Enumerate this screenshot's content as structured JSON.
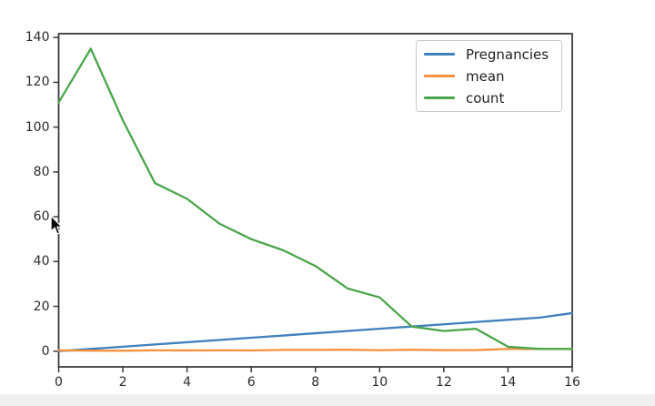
{
  "window": {
    "background": "#ffffff",
    "bottom_bar_color": "#efeff0"
  },
  "chart_data": {
    "type": "line",
    "title": "",
    "xlabel": "",
    "ylabel": "",
    "grid": false,
    "legend_position": "upper right",
    "xlim": [
      0,
      16
    ],
    "ylim": [
      -7,
      141.7
    ],
    "x": [
      0,
      1,
      2,
      3,
      4,
      5,
      6,
      7,
      8,
      9,
      10,
      11,
      12,
      13,
      14,
      15,
      16
    ],
    "x_ticks": [
      {
        "v": 0,
        "label": "0"
      },
      {
        "v": 2,
        "label": "2"
      },
      {
        "v": 4,
        "label": "4"
      },
      {
        "v": 6,
        "label": "6"
      },
      {
        "v": 8,
        "label": "8"
      },
      {
        "v": 10,
        "label": "10"
      },
      {
        "v": 12,
        "label": "12"
      },
      {
        "v": 14,
        "label": "14"
      },
      {
        "v": 16,
        "label": "16"
      }
    ],
    "y_ticks": [
      {
        "v": 0,
        "label": "0"
      },
      {
        "v": 20,
        "label": "20"
      },
      {
        "v": 40,
        "label": "40"
      },
      {
        "v": 60,
        "label": "60"
      },
      {
        "v": 80,
        "label": "80"
      },
      {
        "v": 100,
        "label": "100"
      },
      {
        "v": 120,
        "label": "120"
      },
      {
        "v": 140,
        "label": "140"
      }
    ],
    "series": [
      {
        "name": "Pregnancies",
        "color": "#4080bd",
        "values": [
          0,
          1,
          2,
          3,
          4,
          5,
          6,
          7,
          8,
          9,
          10,
          11,
          12,
          13,
          14,
          15,
          17
        ]
      },
      {
        "name": "mean",
        "color": "#f6913e",
        "values": [
          0.34,
          0.22,
          0.18,
          0.36,
          0.34,
          0.37,
          0.32,
          0.56,
          0.58,
          0.64,
          0.42,
          0.64,
          0.44,
          0.5,
          1.0,
          1.0,
          1.0
        ]
      },
      {
        "name": "count",
        "color": "#4aa54a",
        "values": [
          111,
          135,
          103,
          75,
          68,
          57,
          50,
          45,
          38,
          28,
          24,
          11,
          9,
          10,
          2,
          1,
          1
        ]
      }
    ]
  },
  "legend": {
    "items": [
      {
        "label": "Pregnancies",
        "color": "#4080bd"
      },
      {
        "label": "mean",
        "color": "#f6913e"
      },
      {
        "label": "count",
        "color": "#4aa54a"
      }
    ]
  },
  "axes": {
    "spine_color": "#3a3a3a",
    "tick_color": "#3a3a3a"
  },
  "cursor": {
    "present": true
  }
}
